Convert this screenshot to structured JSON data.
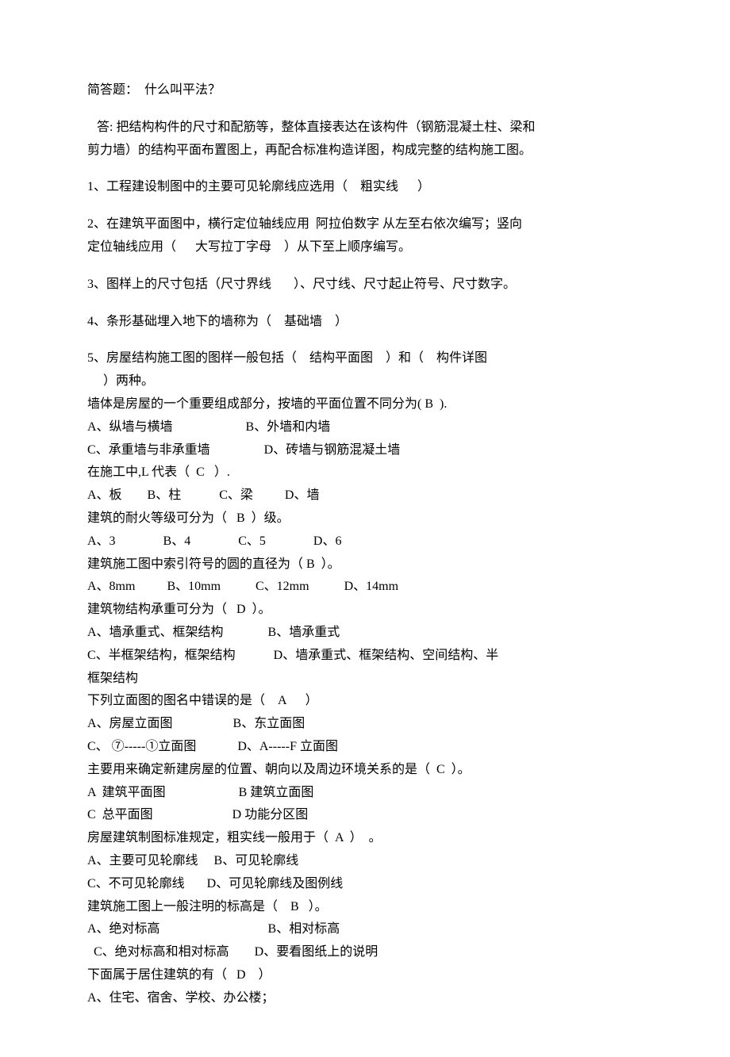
{
  "colors": {
    "text": "#000000",
    "background": "#ffffff"
  },
  "typography": {
    "body_fontsize": 16,
    "font_family": "SimSun"
  },
  "content": {
    "saq_title": "简答题：  什么叫平法？",
    "answer_l1": "   答: 把结构构件的尺寸和配筋等，整体直接表达在该构件（钢筋混凝土柱、梁和",
    "answer_l2": "剪力墙）的结构平面布置图上，再配合标准构造详图，构成完整的结构施工图。",
    "fill1": "1、工程建设制图中的主要可见轮廓线应选用（    粗实线      ）",
    "fill2_l1": "2、在建筑平面图中，横行定位轴线应用  阿拉伯数字 从左至右依次编写；竖向",
    "fill2_l2": "定位轴线应用（      大写拉丁字母    ）从下至上顺序编写。",
    "fill3": "3、图样上的尺寸包括（尺寸界线       ）、尺寸线、尺寸起止符号、尺寸数字。",
    "fill4": "4、条形基础埋入地下的墙称为（    基础墙    ）",
    "fill5_l1": "5、房屋结构施工图的图样一般包括（    结构平面图    ）和（    构件详图",
    "fill5_l2": "     ）两种。",
    "mc1_q": "墙体是房屋的一个重要组成部分，按墙的平面位置不同分为( B  ).",
    "mc1_ab": "A、纵墙与横墙                       B、外墙和内墙",
    "mc1_cd": "C、承重墙与非承重墙                 D、砖墙与钢筋混凝土墙",
    "mc2_q": "在施工中,L 代表（  C   ）.",
    "mc2_opts": "A、板        B、柱            C、梁          D、墙",
    "mc3_q": "建筑的耐火等级可分为（   B  ）级。",
    "mc3_opts": "A、3               B、4               C、5               D、6",
    "mc4_q": "建筑施工图中索引符号的圆的直径为（ B  ）。",
    "mc4_opts": "A、8mm          B、10mm           C、12mm           D、14mm",
    "mc5_q": "建筑物结构承重可分为（   D  ）。",
    "mc5_ab": "A、墙承重式、框架结构              B、墙承重式",
    "mc5_cd_l1": "C、半框架结构，框架结构            D、墙承重式、框架结构、空间结构、半",
    "mc5_cd_l2": "框架结构",
    "mc6_q": "下列立面图的图名中错误的是（    A      ）",
    "mc6_ab": "A、房屋立面图                   B、东立面图",
    "mc6_cd": "C、 ⑦-----①立面图             D、A-----F 立面图",
    "mc7_q": "主要用来确定新建房屋的位置、朝向以及周边环境关系的是（  C  ）。",
    "mc7_ab": "A  建筑平面图                       B 建筑立面图",
    "mc7_cd": "C  总平面图                         D 功能分区图",
    "mc8_q": "房屋建筑制图标准规定，粗实线一般用于（  A  ）  。",
    "mc8_ab": "A、主要可见轮廓线     B、可见轮廓线",
    "mc8_cd": "C、不可见轮廓线       D、可见轮廓线及图例线",
    "mc9_q": "建筑施工图上一般注明的标高是（    B   ）。",
    "mc9_ab": "A、绝对标高                                  B、相对标高",
    "mc9_cd": "  C、绝对标高和相对标高        D、要看图纸上的说明",
    "mc10_q": "下面属于居住建筑的有（   D    ）",
    "mc10_a": "A、住宅、宿舍、学校、办公楼；"
  }
}
